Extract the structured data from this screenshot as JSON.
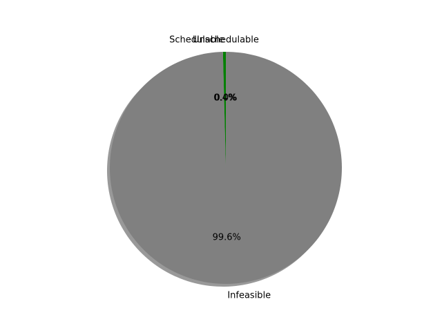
{
  "chart_data": {
    "type": "pie",
    "title": "",
    "categories": [
      "Unschedulable",
      "Schedulable",
      "Infeasible"
    ],
    "values": [
      0.0,
      0.4,
      99.6
    ],
    "percent_labels": [
      "0.0%",
      "0.4%",
      "99.6%"
    ],
    "colors": [
      "#ff0000",
      "#008000",
      "#808080"
    ],
    "shadow": true,
    "start_angle_deg": 90,
    "direction": "counterclockwise",
    "legend": "none"
  }
}
